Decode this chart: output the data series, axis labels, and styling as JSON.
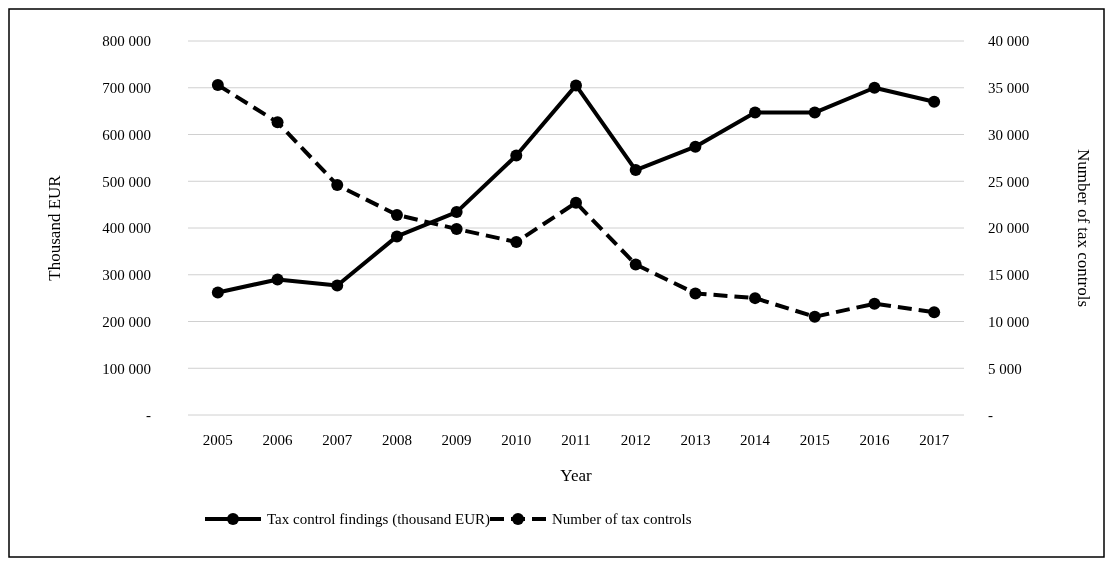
{
  "chart_data": {
    "type": "line",
    "xlabel": "Year",
    "ylabel": "Thousand EUR",
    "y2label": "Number of tax controls",
    "categories": [
      "2005",
      "2006",
      "2007",
      "2008",
      "2009",
      "2010",
      "2011",
      "2012",
      "2013",
      "2014",
      "2015",
      "2016",
      "2017"
    ],
    "series": [
      {
        "name": "Tax control findings (thousand EUR)",
        "color": "#000000",
        "line_style": "solid",
        "marker": "circle",
        "values": [
          262000,
          290000,
          277000,
          382000,
          434000,
          555000,
          705000,
          524000,
          574000,
          647000,
          647000,
          700000,
          670000
        ]
      },
      {
        "name": "Number of tax controls",
        "color": "#000000",
        "line_style": "dashed",
        "marker": "circle",
        "axis": "y2",
        "values": [
          35300,
          31300,
          24600,
          21400,
          19900,
          18500,
          22700,
          16100,
          13000,
          12500,
          10500,
          11900,
          11000
        ]
      }
    ],
    "ylim": [
      0,
      800000
    ],
    "yticks": [
      {
        "value": 0,
        "label": "-"
      },
      {
        "value": 100000,
        "label": "100 000"
      },
      {
        "value": 200000,
        "label": "200 000"
      },
      {
        "value": 300000,
        "label": "300 000"
      },
      {
        "value": 400000,
        "label": "400 000"
      },
      {
        "value": 500000,
        "label": "500 000"
      },
      {
        "value": 600000,
        "label": "600 000"
      },
      {
        "value": 700000,
        "label": "700 000"
      },
      {
        "value": 800000,
        "label": "800 000"
      }
    ],
    "y2lim": [
      0,
      40000
    ],
    "y2ticks": [
      {
        "value": 0,
        "label": "-"
      },
      {
        "value": 5000,
        "label": "5 000"
      },
      {
        "value": 10000,
        "label": "10 000"
      },
      {
        "value": 15000,
        "label": "15 000"
      },
      {
        "value": 20000,
        "label": "20 000"
      },
      {
        "value": 25000,
        "label": "25 000"
      },
      {
        "value": 30000,
        "label": "30 000"
      },
      {
        "value": 35000,
        "label": "35 000"
      },
      {
        "value": 40000,
        "label": "40 000"
      }
    ],
    "grid": "y",
    "legend": "bottom"
  }
}
